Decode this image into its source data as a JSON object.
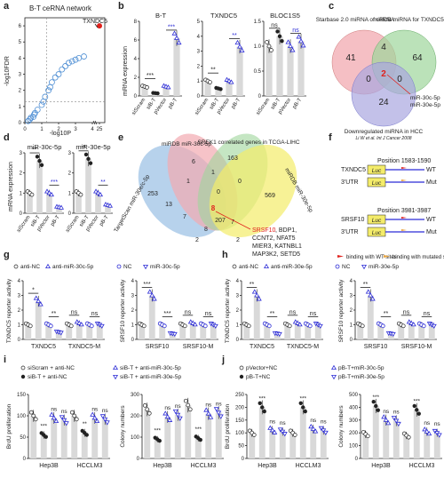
{
  "figure": {
    "panel_letters": [
      "a",
      "b",
      "c",
      "d",
      "e",
      "f",
      "g",
      "h",
      "i",
      "j"
    ]
  },
  "panel_a": {
    "title": "B-T ceRNA network",
    "xlabel": "-log10P",
    "ylabel": "-log10FDR",
    "xticks": [
      "0",
      "1",
      "2",
      "3",
      "4",
      "25"
    ],
    "yticks": [
      "0",
      "1",
      "2",
      "3",
      "4",
      "5",
      "6"
    ],
    "highlight_label": "TXNDC5"
  },
  "panel_b": {
    "ylabel": "mRNA expression",
    "groups": [
      "siScram",
      "siB-T",
      "pVector",
      "pB-T"
    ],
    "subplots": [
      {
        "title": "B-T",
        "yticks": [
          "0",
          "2",
          "4",
          "6",
          "8"
        ],
        "values": [
          1.0,
          0.3,
          1.0,
          6.2
        ],
        "sig": [
          "***",
          "***"
        ]
      },
      {
        "title": "TXNDC5",
        "yticks": [
          "0",
          "1",
          "2",
          "3",
          "4",
          "5"
        ],
        "values": [
          1.0,
          0.5,
          1.0,
          3.3
        ],
        "sig": [
          "**",
          "**"
        ]
      },
      {
        "title": "BLOC1S5",
        "yticks": [
          "0",
          "0.5",
          "1.0",
          "1.5"
        ],
        "values": [
          1.0,
          1.2,
          1.0,
          1.1
        ],
        "sig": [
          "ns",
          "ns"
        ]
      }
    ]
  },
  "panel_c": {
    "circle_labels": [
      "Starbase 2.0 miRNA of ceRNA",
      "miRDB miRNA for TXNDC5",
      "Downregulated miRNA in HCC"
    ],
    "counts": [
      "41",
      "4",
      "64",
      "0",
      "2",
      "0",
      "24"
    ],
    "arrow_labels": [
      "miR-30c-5p",
      "miR-30e-5p"
    ],
    "citation": "Li W et al. Int J Cancer 2008"
  },
  "panel_d": {
    "ylabel": "mRNA expression",
    "groups": [
      "siScram",
      "siB-T",
      "pVector",
      "pB-T"
    ],
    "subplots": [
      {
        "title": "miR-30c-5p",
        "yticks": [
          "0",
          "1",
          "2",
          "3"
        ],
        "values": [
          1.0,
          2.6,
          1.0,
          0.3
        ],
        "sig": [
          "**",
          "***"
        ]
      },
      {
        "title": "miR-30e-5p",
        "yticks": [
          "0",
          "1",
          "2",
          "3"
        ],
        "values": [
          1.0,
          2.7,
          1.0,
          0.4
        ],
        "sig": [
          "**",
          "**"
        ]
      }
    ]
  },
  "panel_e": {
    "set_labels": [
      "miRDB miR-30c-5p",
      "SREK1 correlated genes in TCGA-LIHC",
      "TargetScan miR-30e/c-5p",
      "miRDB miR-30e-5p"
    ],
    "counts": [
      "6",
      "163",
      "253",
      "1",
      "1",
      "0",
      "13",
      "0",
      "569",
      "7",
      "7",
      "8",
      "207",
      "2",
      "2"
    ],
    "center_count": "8",
    "highlight_gene": "SRSF10",
    "other_genes": [
      ", BDP1,",
      "CCNT2, NFAT5",
      "MIER3, KATNBL1",
      "MAP3K2, SETD5"
    ]
  },
  "panel_f": {
    "blocks": [
      {
        "gene": "TXNDC5",
        "position": "Position 1583-1590",
        "utr": "3'UTR",
        "wt": "WT",
        "mut": "Mut"
      },
      {
        "gene": "SRSF10",
        "position": "Position 3981-3987",
        "utr": "3'UTR",
        "wt": "WT",
        "mut": "Mut"
      }
    ],
    "luc": "Luc",
    "legend": [
      "binding with WT sites",
      "binding with mutated sites"
    ]
  },
  "panel_g": {
    "legend": [
      "anti-NC",
      "anti-miR-30c-5p",
      "NC",
      "miR-30c-5p"
    ],
    "subplots": [
      {
        "ylabel": "TXNDC5 reporter activity",
        "yticks": [
          "0",
          "1",
          "2",
          "3",
          "4"
        ],
        "groups": [
          "TXNDC5",
          "TXNDC5-M"
        ],
        "values": [
          1.0,
          2.6,
          1.0,
          0.5,
          1.0,
          1.1,
          1.0,
          1.0
        ],
        "sig": [
          "*",
          "**",
          "ns",
          "ns"
        ]
      },
      {
        "ylabel": "SRSF10 reporter activity",
        "yticks": [
          "0",
          "1",
          "2",
          "3",
          "4"
        ],
        "groups": [
          "SRSF10",
          "SRSF10-M"
        ],
        "values": [
          1.0,
          3.0,
          1.0,
          0.4,
          1.0,
          1.1,
          1.0,
          1.0
        ],
        "sig": [
          "***",
          "***",
          "ns",
          "ns"
        ]
      }
    ]
  },
  "panel_h": {
    "legend": [
      "anti-NC",
      "anti-miR-30e-5p",
      "NC",
      "miR-30e-5p"
    ],
    "subplots": [
      {
        "ylabel": "TXNDC5 reporter activity",
        "yticks": [
          "0",
          "1",
          "2",
          "3",
          "4"
        ],
        "groups": [
          "TXNDC5",
          "TXNDC5-M"
        ],
        "values": [
          1.0,
          3.0,
          1.0,
          0.4,
          1.0,
          1.1,
          1.0,
          1.0
        ],
        "sig": [
          "**",
          "**",
          "ns",
          "ns"
        ]
      },
      {
        "ylabel": "SRSF10 reporter activity",
        "yticks": [
          "0",
          "1",
          "2",
          "3",
          "4"
        ],
        "groups": [
          "SRSF10",
          "SRSF10-M"
        ],
        "values": [
          1.0,
          3.0,
          1.0,
          0.4,
          1.0,
          1.1,
          1.0,
          1.0
        ],
        "sig": [
          "**",
          "**",
          "ns",
          "ns"
        ]
      }
    ]
  },
  "panel_i": {
    "legend": [
      "siScram + anti-NC",
      "siB-T + anti-NC",
      "siB-T + anti-miR-30c-5p",
      "siB-T + anti-miR-30e-5p"
    ],
    "subplots": [
      {
        "ylabel": "BrdU proliferation",
        "yticks": [
          "0",
          "50",
          "100",
          "150"
        ],
        "groups": [
          "Hep3B",
          "HCCLM3"
        ],
        "values": [
          100,
          55,
          95,
          90,
          100,
          60,
          95,
          92
        ],
        "sig": [
          "***",
          "ns",
          "ns",
          "**",
          "ns",
          "ns"
        ]
      },
      {
        "ylabel": "Colony numbers",
        "yticks": [
          "0",
          "100",
          "200",
          "300"
        ],
        "groups": [
          "Hep3B",
          "HCCLM3"
        ],
        "values": [
          230,
          90,
          195,
          205,
          250,
          95,
          210,
          215
        ],
        "sig": [
          "***",
          "ns",
          "ns",
          "***",
          "ns",
          "ns"
        ]
      }
    ]
  },
  "panel_j": {
    "legend": [
      "pVector+NC",
      "pB-T+NC",
      "pB-T+miR-30c-5p",
      "pB-T+miR-30e-5p"
    ],
    "subplots": [
      {
        "ylabel": "BrdU proliferation",
        "yticks": [
          "0",
          "50",
          "100",
          "150",
          "200",
          "250"
        ],
        "groups": [
          "Hep3B",
          "HCCLM3"
        ],
        "values": [
          100,
          200,
          110,
          105,
          100,
          200,
          115,
          110
        ],
        "sig": [
          "***",
          "ns",
          "ns",
          "***",
          "ns",
          "ns"
        ]
      },
      {
        "ylabel": "Colony numbers",
        "yticks": [
          "0",
          "100",
          "200",
          "300",
          "400",
          "500"
        ],
        "groups": [
          "Hep3B",
          "HCCLM3"
        ],
        "values": [
          190,
          410,
          300,
          295,
          180,
          380,
          210,
          200
        ],
        "sig": [
          "***",
          "ns",
          "ns",
          "***",
          "ns",
          "ns"
        ]
      }
    ]
  },
  "chart_data": [
    {
      "type": "scatter",
      "title": "B-T ceRNA network",
      "xlabel": "-log10P",
      "ylabel": "-log10FDR",
      "x": [
        0.2,
        0.3,
        0.35,
        0.5,
        0.55,
        0.6,
        0.75,
        1.0,
        1.1,
        1.2,
        1.4,
        1.5,
        1.6,
        1.8,
        2.0,
        2.2,
        2.4,
        2.6,
        2.8,
        3.0,
        3.2,
        3.5,
        24
      ],
      "y": [
        0.1,
        0.2,
        0.3,
        0.35,
        0.5,
        0.6,
        0.8,
        1.1,
        1.3,
        1.6,
        2.0,
        2.2,
        2.5,
        2.8,
        3.0,
        3.3,
        3.5,
        3.7,
        3.8,
        3.9,
        4.0,
        4.1,
        6.0
      ]
    },
    {
      "type": "bar",
      "title": "B-T",
      "categories": [
        "siScram",
        "siB-T",
        "pVector",
        "pB-T"
      ],
      "values": [
        1.0,
        0.3,
        1.0,
        6.2
      ]
    },
    {
      "type": "bar",
      "title": "TXNDC5",
      "categories": [
        "siScram",
        "siB-T",
        "pVector",
        "pB-T"
      ],
      "values": [
        1.0,
        0.5,
        1.0,
        3.3
      ]
    },
    {
      "type": "bar",
      "title": "BLOC1S5",
      "categories": [
        "siScram",
        "siB-T",
        "pVector",
        "pB-T"
      ],
      "values": [
        1.0,
        1.2,
        1.0,
        1.1
      ]
    },
    {
      "type": "bar",
      "title": "miR-30c-5p",
      "categories": [
        "siScram",
        "siB-T",
        "pVector",
        "pB-T"
      ],
      "values": [
        1.0,
        2.6,
        1.0,
        0.3
      ]
    },
    {
      "type": "bar",
      "title": "miR-30e-5p",
      "categories": [
        "siScram",
        "siB-T",
        "pVector",
        "pB-T"
      ],
      "values": [
        1.0,
        2.7,
        1.0,
        0.4
      ]
    }
  ],
  "colors": {
    "bar": "#d9d9d9",
    "blue": "#2b2bd6",
    "dark": "#222222",
    "red": "#e0201b",
    "yellow": "#f4ec6a",
    "pink": "#f2a9b0",
    "green": "#9ed69b",
    "purple": "#a9a7e0",
    "blue_ellipse": "#9fc3e6",
    "orange_ellipse": "#f6c48a"
  }
}
